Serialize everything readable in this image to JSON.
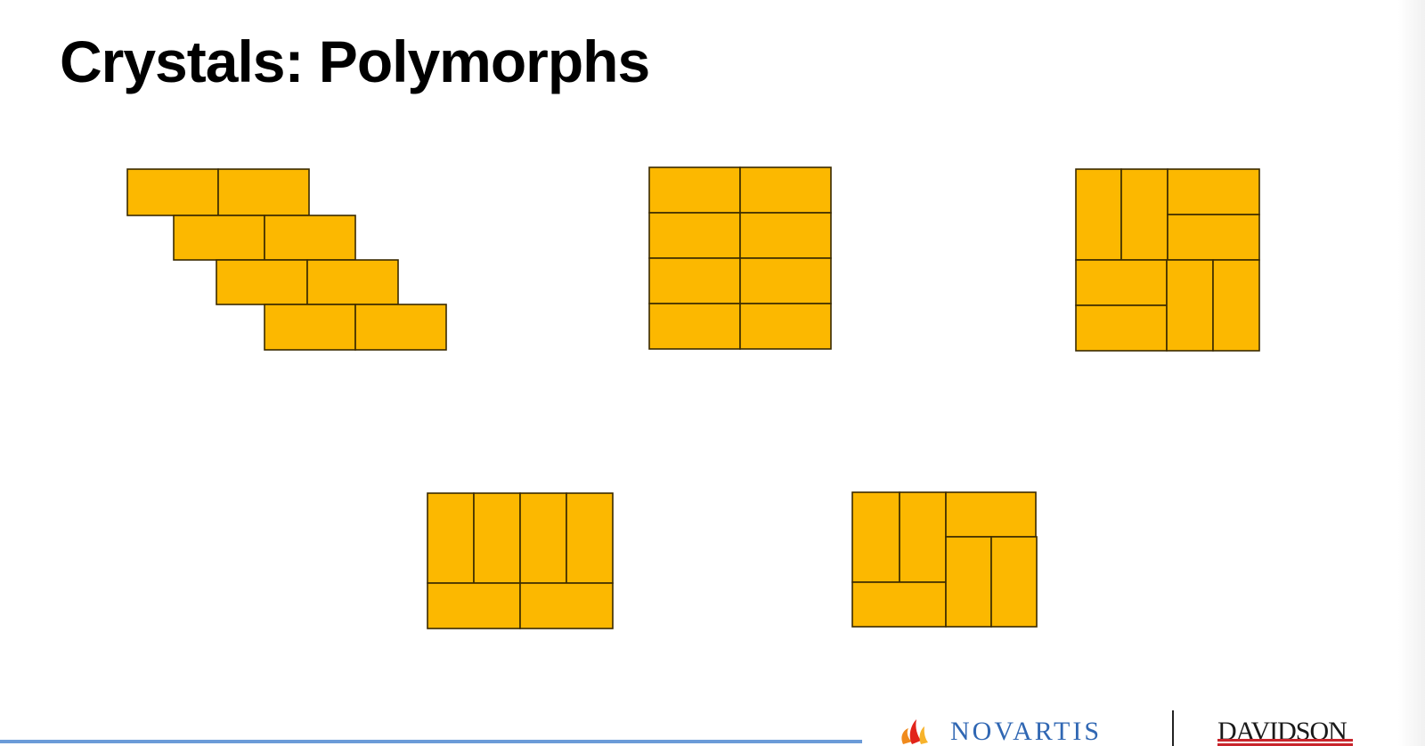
{
  "slide": {
    "title": "Crystals: Polymorphs",
    "tile_color": "#fcb800",
    "tile_outline_color": "#3a2a00",
    "polymorph_count": 5
  },
  "footer": {
    "logos": {
      "novartis": {
        "text": "NOVARTIS",
        "color": "#3067b3",
        "icon": "flame-icon"
      },
      "davidson": {
        "text": "DAVIDSON",
        "color": "#1a1a1a",
        "accent": "#c8252c"
      }
    }
  }
}
